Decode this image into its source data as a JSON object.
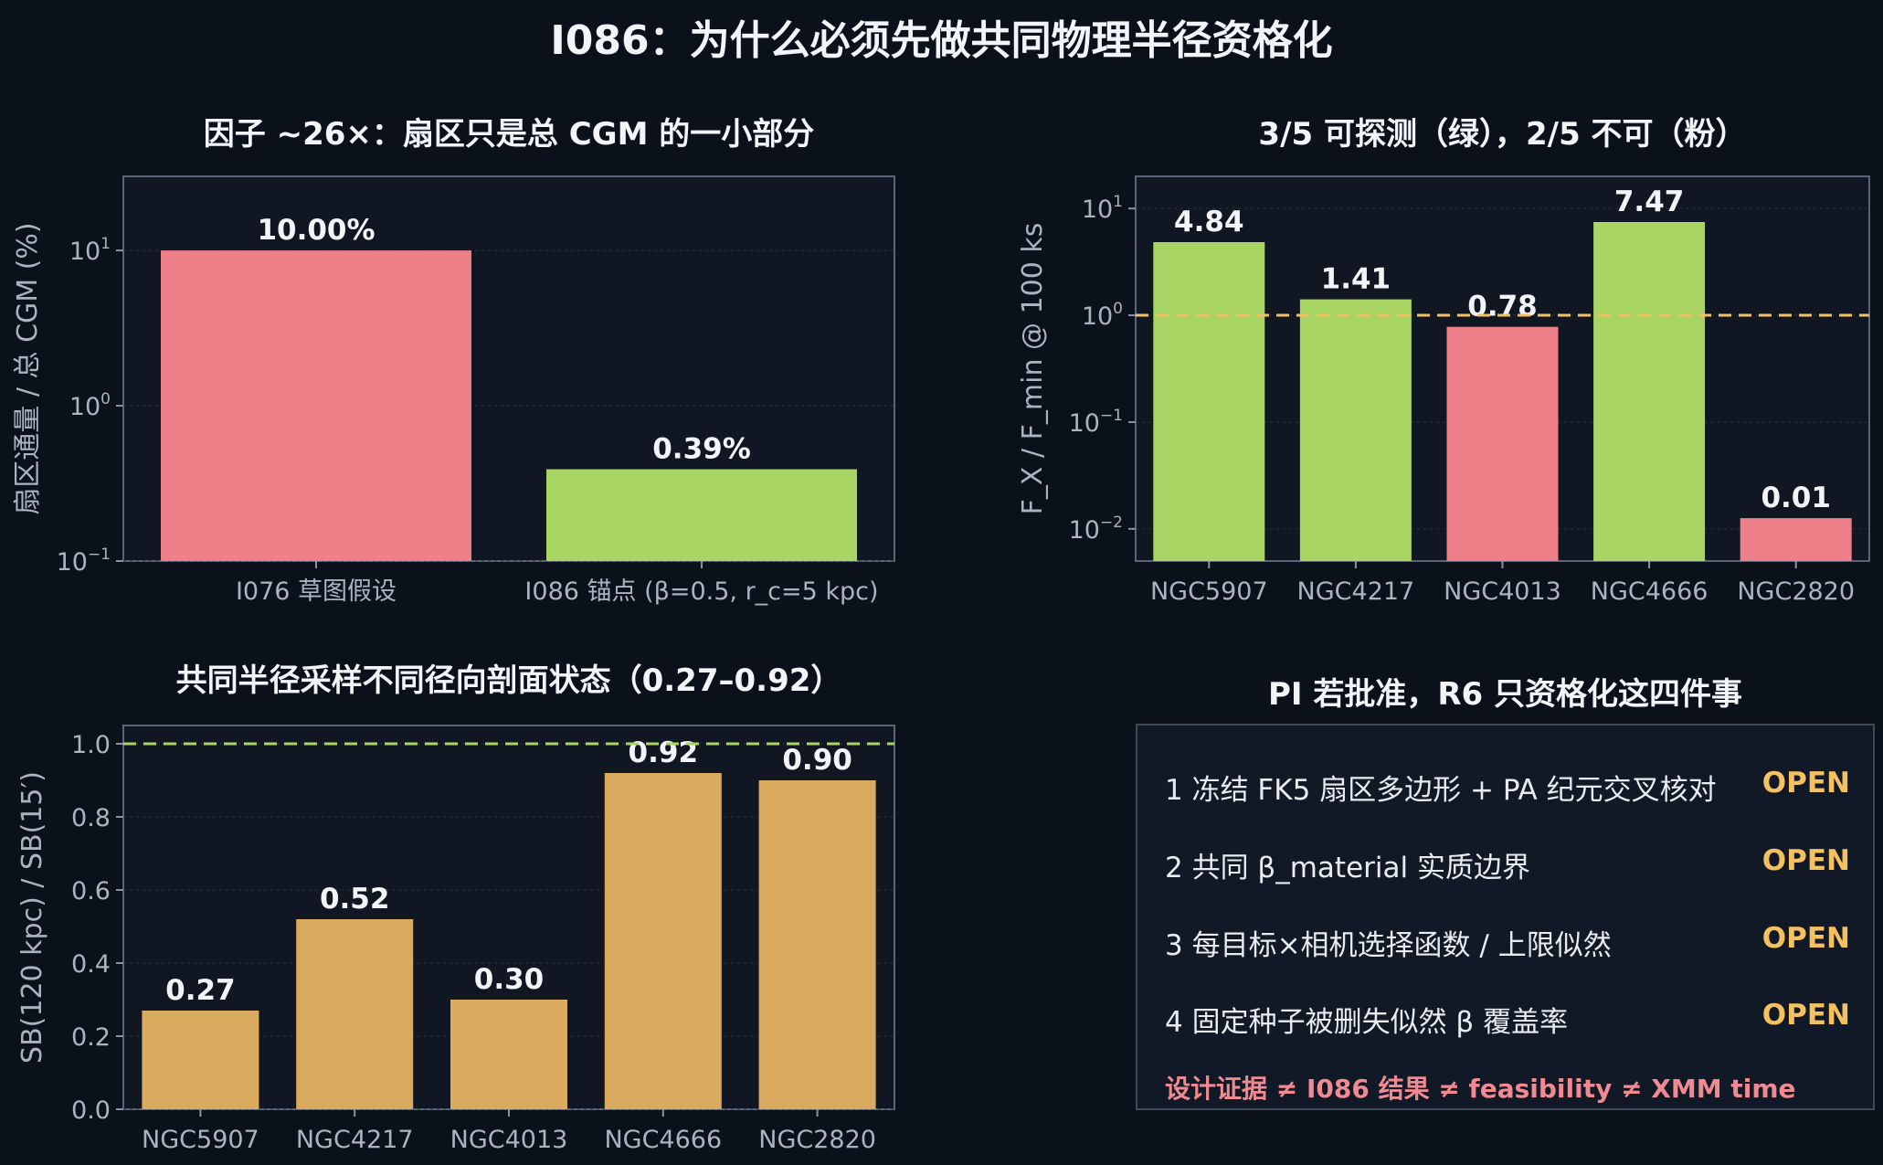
{
  "title": "I086：为什么必须先做共同物理半径资格化",
  "colors": {
    "pink": "#ec7f88",
    "green": "#a8d564",
    "orange": "#daab5f",
    "dash_orange": "#f5c060",
    "dash_green": "#a8d564"
  },
  "chart_data": [
    {
      "type": "bar",
      "title": "因子 ~26×：扇区只是总 CGM 的一小部分",
      "ylabel": "扇区通量 / 总 CGM (%)",
      "yscale": "log",
      "ylim": [
        0.1,
        30
      ],
      "yticks": [
        {
          "base": "10",
          "exp": "−1"
        },
        {
          "base": "10",
          "exp": "0"
        },
        {
          "base": "10",
          "exp": "1"
        }
      ],
      "categories": [
        "I076 草图假设",
        "I086 锚点 (β=0.5, r_c=5 kpc)"
      ],
      "values": [
        10.0,
        0.39
      ],
      "value_labels": [
        "10.00%",
        "0.39%"
      ],
      "bar_colors": [
        "pink",
        "green"
      ]
    },
    {
      "type": "bar",
      "title": "3/5 可探测（绿），2/5 不可（粉）",
      "ylabel": "F_X / F_min @ 100 ks",
      "yscale": "log",
      "ylim": [
        0.005,
        20
      ],
      "yticks": [
        {
          "base": "10",
          "exp": "−2"
        },
        {
          "base": "10",
          "exp": "−1"
        },
        {
          "base": "10",
          "exp": "0"
        },
        {
          "base": "10",
          "exp": "1"
        }
      ],
      "threshold": 1.0,
      "categories": [
        "NGC5907",
        "NGC4217",
        "NGC4013",
        "NGC4666",
        "NGC2820"
      ],
      "values": [
        4.84,
        1.41,
        0.78,
        7.47,
        0.0126
      ],
      "value_labels": [
        "4.84",
        "1.41",
        "0.78",
        "7.47",
        "0.01"
      ],
      "bar_colors": [
        "green",
        "green",
        "pink",
        "green",
        "pink"
      ]
    },
    {
      "type": "bar",
      "title": "共同半径采样不同径向剖面状态（0.27–0.92）",
      "ylabel": "SB(120 kpc) / SB(15′)",
      "yscale": "linear",
      "ylim": [
        0,
        1.05
      ],
      "yticks": [
        "0.0",
        "0.2",
        "0.4",
        "0.6",
        "0.8",
        "1.0"
      ],
      "threshold": 1.0,
      "categories": [
        "NGC5907",
        "NGC4217",
        "NGC4013",
        "NGC4666",
        "NGC2820"
      ],
      "values": [
        0.27,
        0.52,
        0.3,
        0.92,
        0.9
      ],
      "value_labels": [
        "0.27",
        "0.52",
        "0.30",
        "0.92",
        "0.90"
      ],
      "bar_colors": [
        "orange",
        "orange",
        "orange",
        "orange",
        "orange"
      ]
    }
  ],
  "checklist": {
    "title": "PI 若批准，R6 只资格化这四件事",
    "items": [
      {
        "label": "1  冻结 FK5 扇区多边形 + PA 纪元交叉核对",
        "status": "OPEN"
      },
      {
        "label": "2  共同 β_material 实质边界",
        "status": "OPEN"
      },
      {
        "label": "3  每目标×相机选择函数 / 上限似然",
        "status": "OPEN"
      },
      {
        "label": "4  固定种子被删失似然 β 覆盖率",
        "status": "OPEN"
      }
    ],
    "note": "设计证据 ≠ I086 结果 ≠ feasibility ≠ XMM time"
  }
}
